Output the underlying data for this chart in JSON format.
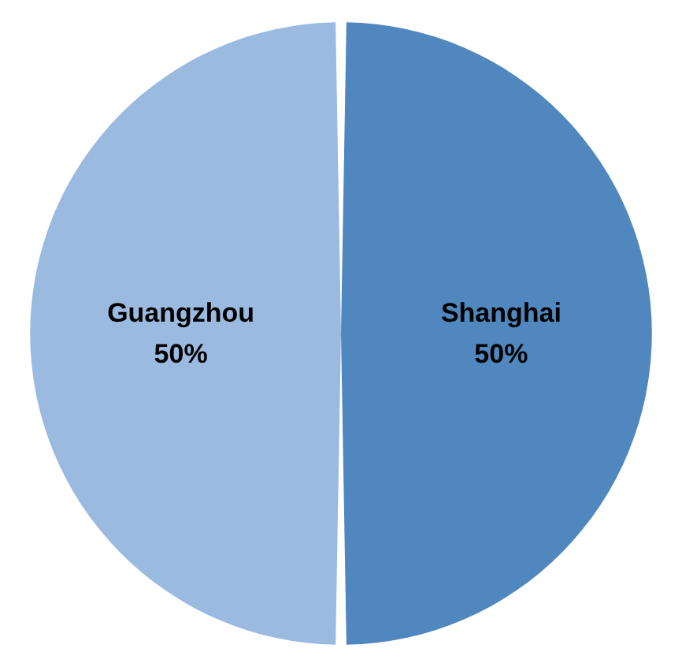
{
  "chart_data": {
    "type": "pie",
    "categories": [
      "Shanghai",
      "Guangzhou"
    ],
    "values": [
      50,
      50
    ],
    "colors": [
      "#4f87be",
      "#9bbae0"
    ],
    "value_labels": [
      "50%",
      "50%"
    ],
    "legend": false
  }
}
